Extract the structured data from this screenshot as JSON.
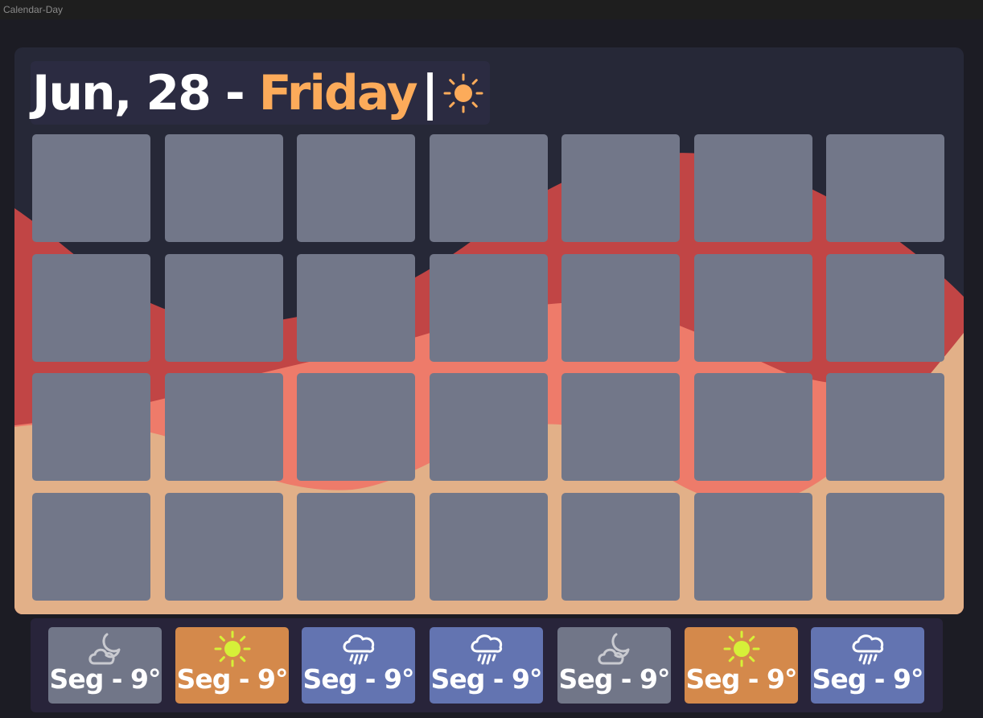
{
  "window": {
    "title": "Calendar-Day"
  },
  "header": {
    "date": "Jun, 28 - ",
    "day": "Friday",
    "separator": "|",
    "weather_icon": "sun-icon"
  },
  "colors": {
    "background": "#262837",
    "accent": "#fcab5a",
    "cell": "#727789",
    "wave_red": "#c14545",
    "wave_salmon": "#ee7b6a",
    "wave_peach": "#e2b088",
    "card_night": "#717688",
    "card_sunny": "#d4894b",
    "card_rain": "#6374b1",
    "sun_icon": "#d6f038"
  },
  "calendar": {
    "rows": 4,
    "columns": 7
  },
  "forecast": [
    {
      "label": "Seg - 9°",
      "icon": "cloud-moon-icon",
      "kind": "night"
    },
    {
      "label": "Seg - 9°",
      "icon": "sun-icon",
      "kind": "sunny"
    },
    {
      "label": "Seg - 9°",
      "icon": "cloud-rain-icon",
      "kind": "rain"
    },
    {
      "label": "Seg - 9°",
      "icon": "cloud-rain-icon",
      "kind": "rain"
    },
    {
      "label": "Seg - 9°",
      "icon": "cloud-moon-icon",
      "kind": "night"
    },
    {
      "label": "Seg - 9°",
      "icon": "sun-icon",
      "kind": "sunny"
    },
    {
      "label": "Seg - 9°",
      "icon": "cloud-rain-icon",
      "kind": "rain"
    }
  ]
}
